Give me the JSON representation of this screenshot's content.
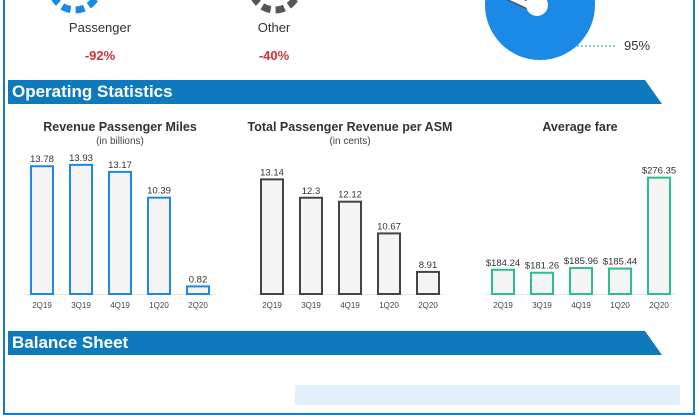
{
  "segments": [
    {
      "label": "Passenger",
      "value": "-92%",
      "color": "#1a8ae6"
    },
    {
      "label": "Other",
      "value": "-40%",
      "color": "#555555"
    }
  ],
  "pie": {
    "label": "95%",
    "color": "#1a8ae6"
  },
  "sections": {
    "operating": "Operating Statistics",
    "balance": "Balance Sheet"
  },
  "colors": {
    "band": "#0f79bd",
    "negative": "#d2323c",
    "bar_fill": "#f4f4f4"
  },
  "chart_data": [
    {
      "type": "bar",
      "title": "Revenue Passenger Miles",
      "subtitle": "(in billions)",
      "categories": [
        "2Q19",
        "3Q19",
        "4Q19",
        "1Q20",
        "2Q20"
      ],
      "values": [
        13.78,
        13.93,
        13.17,
        10.39,
        0.82
      ],
      "labels": [
        "13.78",
        "13.93",
        "13.17",
        "10.39",
        "0.82"
      ],
      "ylim": [
        0,
        15.1
      ],
      "color": "#1a8ae6"
    },
    {
      "type": "bar",
      "title": "Total Passenger Revenue per ASM",
      "subtitle": "(in cents)",
      "categories": [
        "2Q19",
        "3Q19",
        "4Q19",
        "1Q20",
        "2Q20"
      ],
      "values": [
        13.14,
        12.3,
        12.12,
        10.67,
        8.91
      ],
      "labels": [
        "13.14",
        "12.3",
        "12.12",
        "10.67",
        "8.91"
      ],
      "ylim": [
        7.9,
        14.3
      ],
      "color": "#444444"
    },
    {
      "type": "bar",
      "title": "Average fare",
      "subtitle": "",
      "categories": [
        "2Q19",
        "3Q19",
        "4Q19",
        "1Q20",
        "2Q20"
      ],
      "values": [
        184.24,
        181.26,
        185.96,
        185.44,
        276.35
      ],
      "labels": [
        "$184.24",
        "$181.26",
        "$185.96",
        "$185.44",
        "$276.35"
      ],
      "ylim": [
        160,
        300
      ],
      "color": "#2bbf8a"
    }
  ]
}
